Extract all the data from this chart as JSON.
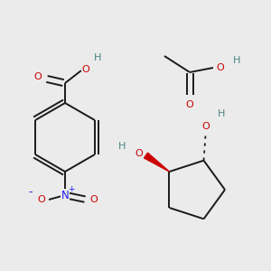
{
  "background_color": "#ebebeb",
  "atom_colors": {
    "O": "#cc0000",
    "N": "#1a1aee",
    "H": "#4a8585",
    "bond": "#1a1a1a"
  },
  "bond_width": 1.4,
  "font_size": 8.0
}
